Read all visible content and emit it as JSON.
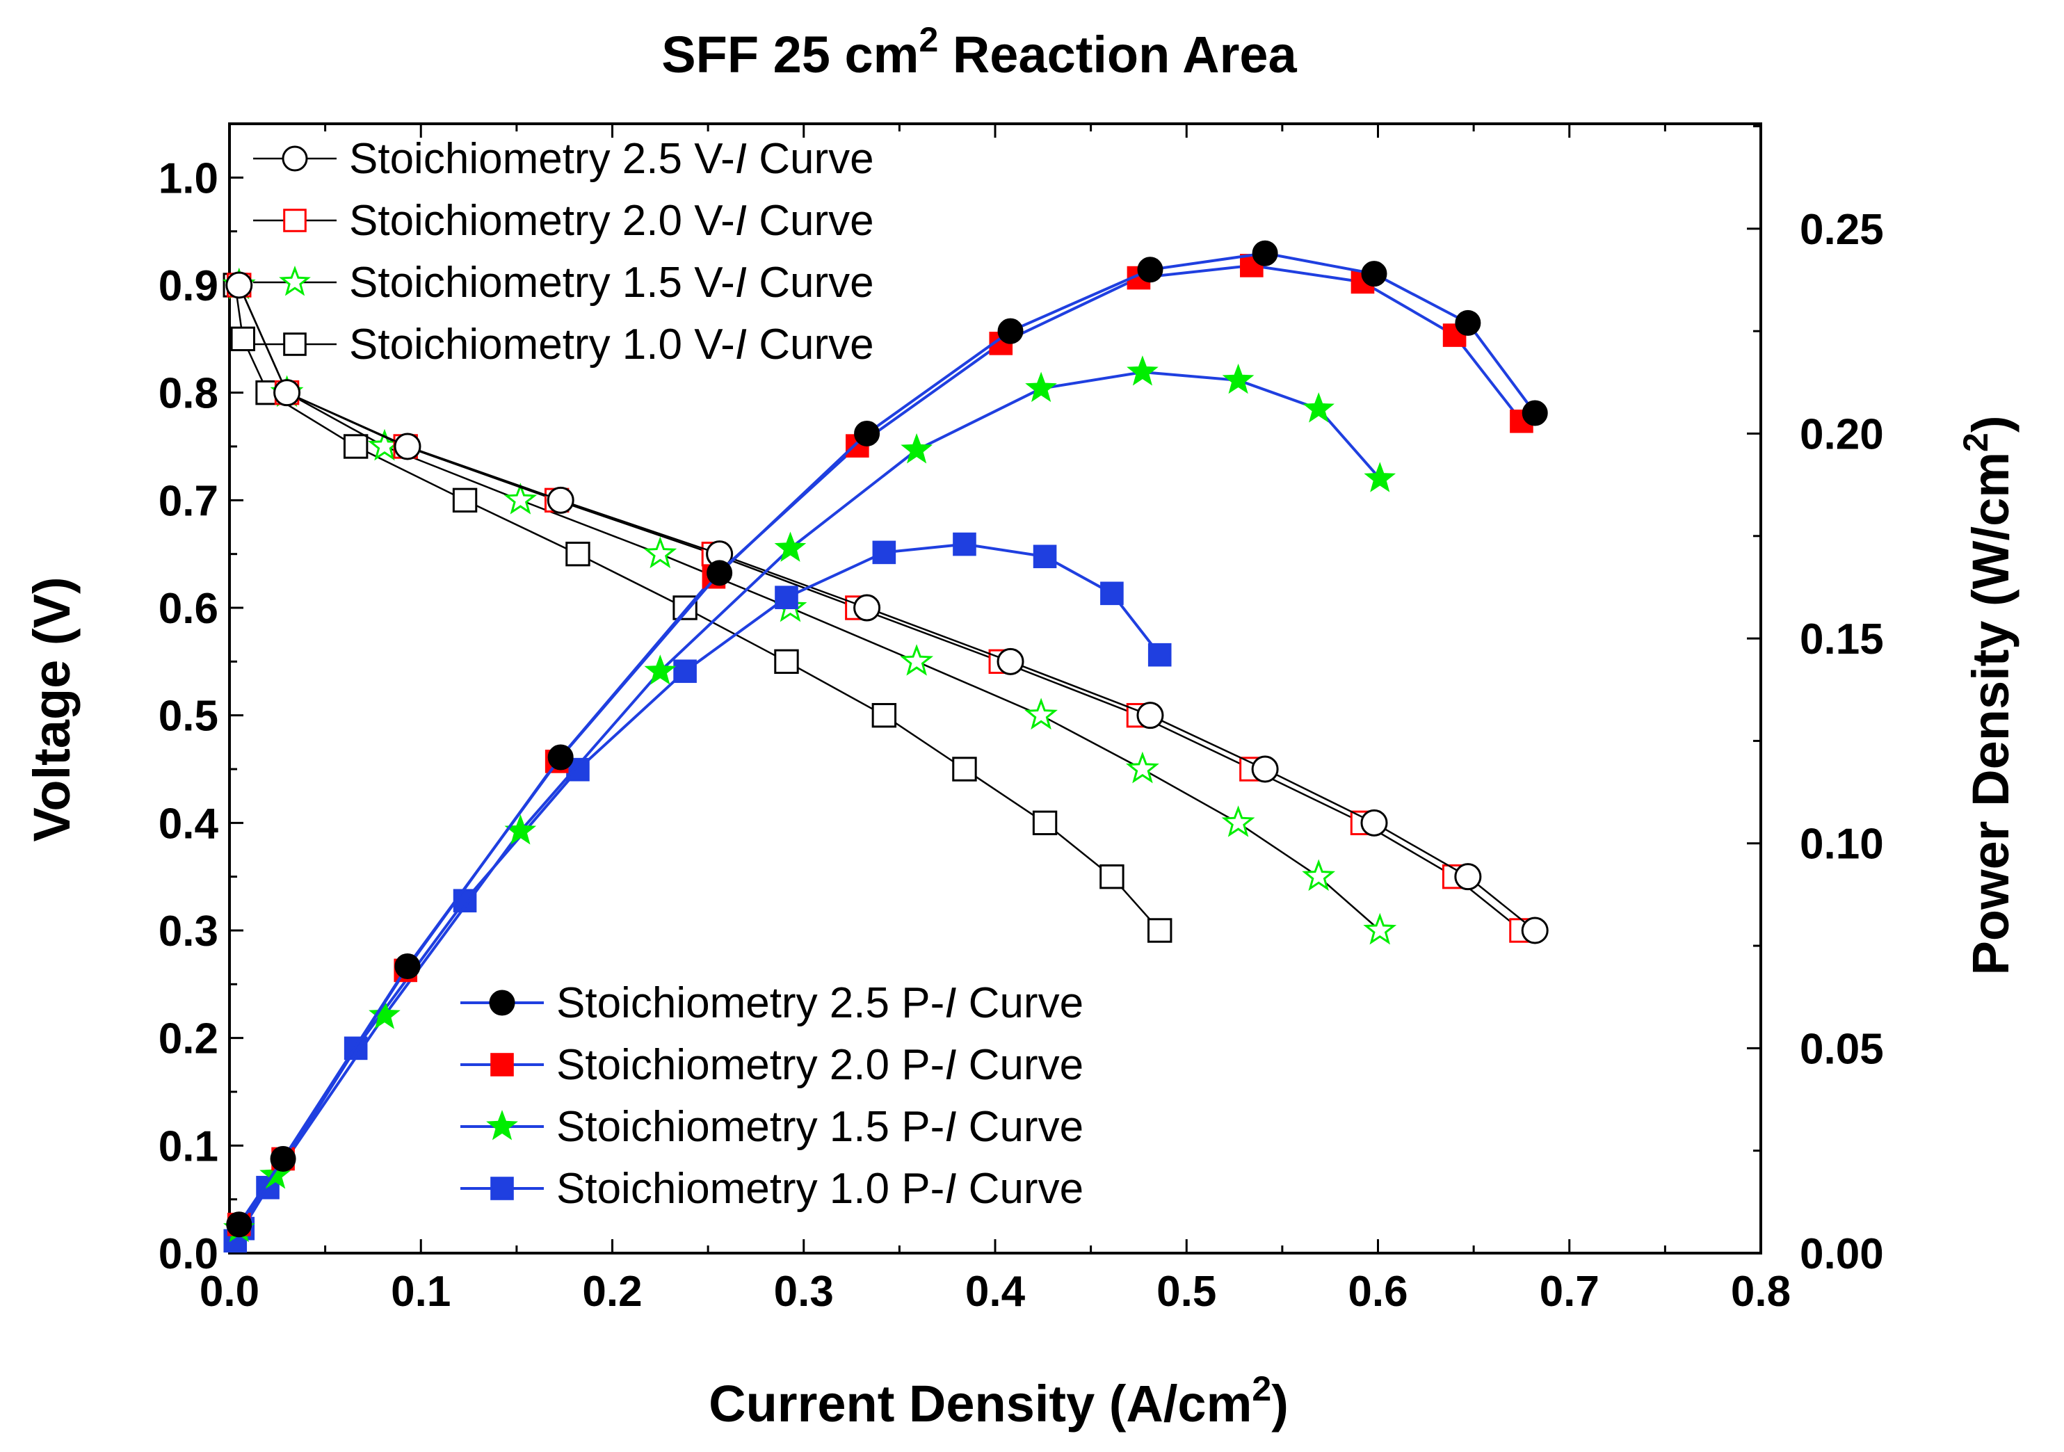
{
  "chart_data": {
    "type": "line",
    "title": {
      "main": "SFF 25 cm",
      "sup": "2",
      "rest": " Reaction Area"
    },
    "xlabel": {
      "main": "Current Density (A/cm",
      "sup": "2",
      "rest": ")"
    },
    "ylabel": "Voltage (V)",
    "y2label": {
      "main": "Power Density (W/cm",
      "sup": "2",
      "rest": ")"
    },
    "xlim": [
      0,
      0.8
    ],
    "ylim": [
      0,
      1.05
    ],
    "y2lim": [
      0,
      0.2756
    ],
    "xticks": [
      "0.0",
      "0.1",
      "0.2",
      "0.3",
      "0.4",
      "0.5",
      "0.6",
      "0.7",
      "0.8"
    ],
    "yticks": [
      "0.0",
      "0.1",
      "0.2",
      "0.3",
      "0.4",
      "0.5",
      "0.6",
      "0.7",
      "0.8",
      "0.9",
      "1.0"
    ],
    "y2ticks": [
      "0.00",
      "0.05",
      "0.10",
      "0.15",
      "0.20",
      "0.25"
    ],
    "grid": false,
    "series": [
      {
        "name_prefix": "Stoichiometry 2.5 V-",
        "name_italic": "I",
        "name_suffix": " Curve",
        "axis": "left",
        "color": "#000000",
        "line_color": "#000000",
        "marker": "circle",
        "filled": false,
        "legend": "vi",
        "x": [
          0.005,
          0.03,
          0.093,
          0.173,
          0.256,
          0.333,
          0.408,
          0.481,
          0.541,
          0.598,
          0.647,
          0.682
        ],
        "y": [
          0.9,
          0.8,
          0.75,
          0.7,
          0.65,
          0.6,
          0.55,
          0.5,
          0.45,
          0.4,
          0.35,
          0.3
        ]
      },
      {
        "name_prefix": "Stoichiometry 2.0 V-",
        "name_italic": "I",
        "name_suffix": " Curve",
        "axis": "left",
        "color": "#ff0000",
        "line_color": "#000000",
        "marker": "square",
        "filled": false,
        "legend": "vi",
        "x": [
          0.005,
          0.03,
          0.092,
          0.171,
          0.253,
          0.328,
          0.403,
          0.475,
          0.534,
          0.592,
          0.64,
          0.675
        ],
        "y": [
          0.9,
          0.8,
          0.75,
          0.7,
          0.65,
          0.6,
          0.55,
          0.5,
          0.45,
          0.4,
          0.35,
          0.3
        ]
      },
      {
        "name_prefix": "Stoichiometry 1.5 V-",
        "name_italic": "I",
        "name_suffix": " Curve",
        "axis": "left",
        "color": "#00ee00",
        "line_color": "#000000",
        "marker": "star",
        "filled": false,
        "legend": "vi",
        "x": [
          0.005,
          0.03,
          0.081,
          0.152,
          0.225,
          0.293,
          0.359,
          0.424,
          0.477,
          0.527,
          0.569,
          0.601
        ],
        "y": [
          0.9,
          0.8,
          0.75,
          0.7,
          0.65,
          0.6,
          0.55,
          0.5,
          0.45,
          0.4,
          0.35,
          0.3
        ]
      },
      {
        "name_prefix": "Stoichiometry 1.0 V-",
        "name_italic": "I",
        "name_suffix": " Curve",
        "axis": "left",
        "color": "#000000",
        "line_color": "#000000",
        "marker": "square",
        "filled": false,
        "legend": "vi",
        "x": [
          0.003,
          0.007,
          0.02,
          0.066,
          0.123,
          0.182,
          0.238,
          0.291,
          0.342,
          0.384,
          0.426,
          0.461,
          0.486
        ],
        "y": [
          0.9,
          0.85,
          0.8,
          0.75,
          0.7,
          0.65,
          0.6,
          0.55,
          0.5,
          0.45,
          0.4,
          0.35,
          0.3
        ]
      },
      {
        "name_prefix": "Stoichiometry 2.5 P-",
        "name_italic": "I",
        "name_suffix": " Curve",
        "axis": "right",
        "color": "#000000",
        "line_color": "#1f3fe0",
        "marker": "circle",
        "filled": true,
        "legend": "pi",
        "x": [
          0.005,
          0.028,
          0.093,
          0.173,
          0.256,
          0.333,
          0.408,
          0.481,
          0.541,
          0.598,
          0.647,
          0.682
        ],
        "y": [
          0.007,
          0.023,
          0.07,
          0.121,
          0.166,
          0.2,
          0.225,
          0.24,
          0.244,
          0.239,
          0.227,
          0.205
        ]
      },
      {
        "name_prefix": "Stoichiometry 2.0 P-",
        "name_italic": "I",
        "name_suffix": " Curve",
        "axis": "right",
        "color": "#ff0000",
        "line_color": "#1f3fe0",
        "marker": "square",
        "filled": true,
        "legend": "pi",
        "x": [
          0.005,
          0.028,
          0.092,
          0.171,
          0.253,
          0.328,
          0.403,
          0.475,
          0.534,
          0.592,
          0.64,
          0.675
        ],
        "y": [
          0.007,
          0.023,
          0.069,
          0.12,
          0.165,
          0.197,
          0.222,
          0.238,
          0.241,
          0.237,
          0.224,
          0.203
        ]
      },
      {
        "name_prefix": "Stoichiometry 1.5 P-",
        "name_italic": "I",
        "name_suffix": " Curve",
        "axis": "right",
        "color": "#00ee00",
        "line_color": "#1f3fe0",
        "marker": "star",
        "filled": true,
        "legend": "pi",
        "x": [
          0.005,
          0.024,
          0.081,
          0.152,
          0.225,
          0.293,
          0.359,
          0.424,
          0.477,
          0.527,
          0.569,
          0.601
        ],
        "y": [
          0.006,
          0.019,
          0.058,
          0.103,
          0.142,
          0.172,
          0.196,
          0.211,
          0.215,
          0.213,
          0.206,
          0.189
        ]
      },
      {
        "name_prefix": "Stoichiometry 1.0 P-",
        "name_italic": "I",
        "name_suffix": " Curve",
        "axis": "right",
        "color": "#1f3fe0",
        "line_color": "#1f3fe0",
        "marker": "square",
        "filled": true,
        "legend": "pi",
        "x": [
          0.003,
          0.007,
          0.02,
          0.066,
          0.123,
          0.182,
          0.238,
          0.291,
          0.342,
          0.384,
          0.426,
          0.461,
          0.486
        ],
        "y": [
          0.003,
          0.006,
          0.016,
          0.05,
          0.086,
          0.118,
          0.142,
          0.16,
          0.171,
          0.173,
          0.17,
          0.161,
          0.146
        ]
      }
    ]
  }
}
